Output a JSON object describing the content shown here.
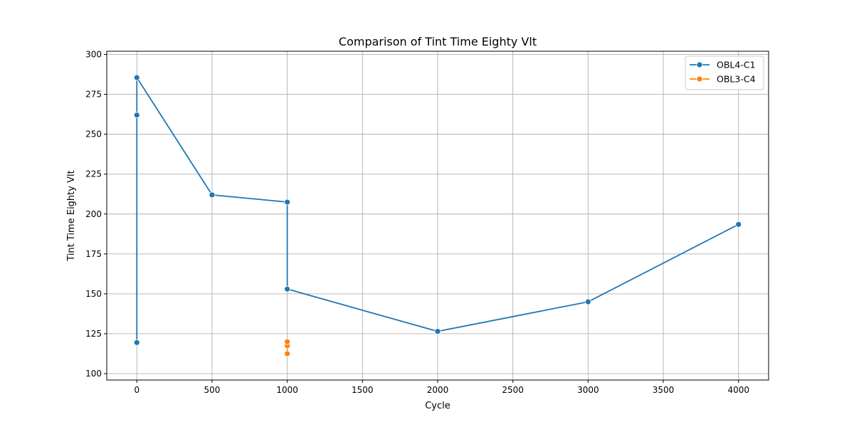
{
  "chart_data": {
    "type": "line",
    "title": "Comparison of Tint Time Eighty Vlt",
    "xlabel": "Cycle",
    "ylabel": "Tint Time Eighty Vlt",
    "xlim": [
      -200,
      4200
    ],
    "ylim": [
      96,
      302
    ],
    "xticks": [
      0,
      500,
      1000,
      1500,
      2000,
      2500,
      3000,
      3500,
      4000
    ],
    "yticks": [
      100,
      125,
      150,
      175,
      200,
      225,
      250,
      275,
      300
    ],
    "grid": true,
    "legend_position": "top-right",
    "series": [
      {
        "name": "OBL4-C1",
        "color": "#1f77b4",
        "points": [
          {
            "x": 0,
            "y": 119.5
          },
          {
            "x": 0,
            "y": 262
          },
          {
            "x": 0,
            "y": 285.5
          },
          {
            "x": 500,
            "y": 212
          },
          {
            "x": 1000,
            "y": 207.5
          },
          {
            "x": 1000,
            "y": 153
          },
          {
            "x": 2000,
            "y": 126.5
          },
          {
            "x": 3000,
            "y": 145
          },
          {
            "x": 4000,
            "y": 193.5
          }
        ]
      },
      {
        "name": "OBL3-C4",
        "color": "#ff7f0e",
        "points": [
          {
            "x": 1000,
            "y": 112.5
          },
          {
            "x": 1000,
            "y": 117.5
          },
          {
            "x": 1000,
            "y": 120
          }
        ]
      }
    ]
  }
}
